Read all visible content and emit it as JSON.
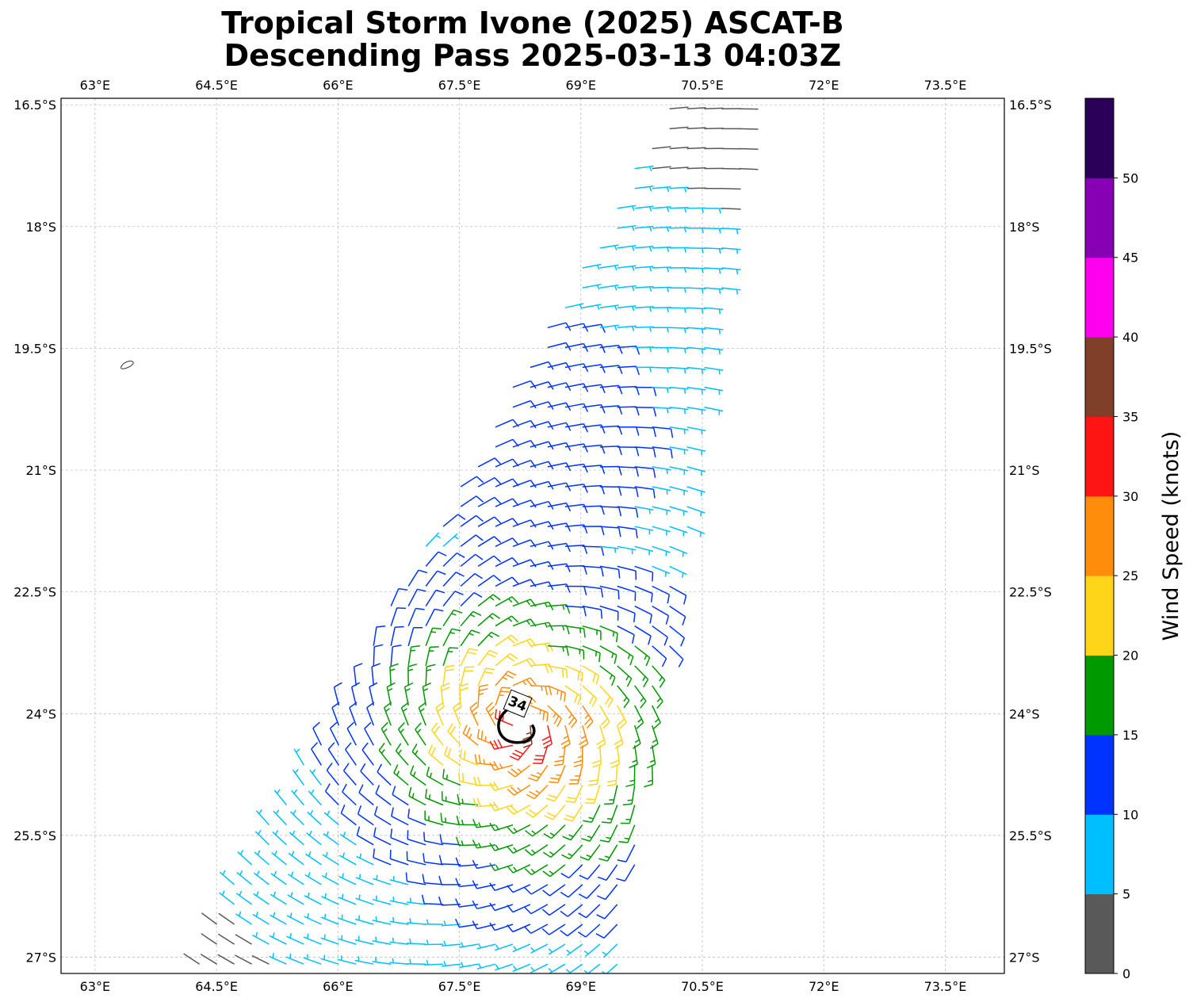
{
  "header": {
    "title_line1": "Tropical Storm Ivone (2025) ASCAT-B",
    "title_line2": "Descending Pass 2025-03-13 04:03Z"
  },
  "map": {
    "lon_range": [
      62.58,
      74.23
    ],
    "lat_range": [
      -27.2,
      -16.42
    ],
    "lon_ticks": [
      "63°E",
      "64.5°E",
      "66°E",
      "67.5°E",
      "69°E",
      "70.5°E",
      "72°E",
      "73.5°E"
    ],
    "lat_ticks": [
      "16.5°S",
      "18°S",
      "19.5°S",
      "21°S",
      "22.5°S",
      "24°S",
      "25.5°S",
      "27°S"
    ],
    "gridlines": true,
    "storm_center": {
      "lon": 68.2,
      "lat": -24.1
    },
    "wind_radius_label": "34",
    "island": {
      "lon": 63.4,
      "lat": -19.7
    }
  },
  "colorbar": {
    "label": "Wind Speed (knots)",
    "tick_labels": [
      "0",
      "5",
      "10",
      "15",
      "20",
      "25",
      "30",
      "35",
      "40",
      "45",
      "50"
    ],
    "colors": [
      "#595959",
      "#00bfff",
      "#0033ff",
      "#009900",
      "#ffd51a",
      "#ff8c0a",
      "#ff1414",
      "#7f3f28",
      "#ff00ee",
      "#8800b3",
      "#2b0059"
    ]
  }
}
